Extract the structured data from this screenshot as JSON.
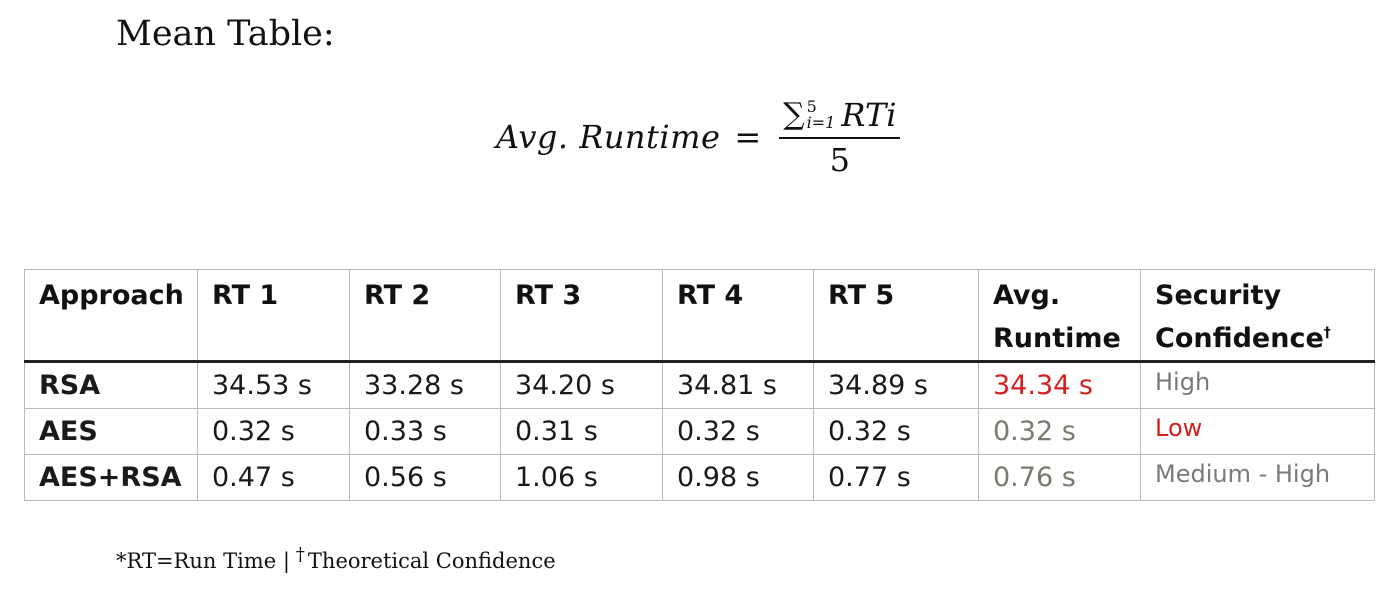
{
  "heading": "Mean Table:",
  "formula": {
    "lhs": "Avg. Runtime",
    "equals": "=",
    "sum_symbol": "∑",
    "upper_limit": "5",
    "lower_limit": "i=1",
    "term": "RTi",
    "denominator": "5"
  },
  "table": {
    "headers": [
      "Approach",
      "RT 1",
      "RT 2",
      "RT 3",
      "RT 4",
      "RT 5",
      "Avg.",
      "Runtime",
      "Security",
      "Confidence",
      "†"
    ],
    "rows": [
      {
        "approach": "RSA",
        "rt": [
          "34.53 s",
          "33.28 s",
          "34.20 s",
          "34.81 s",
          "34.89 s"
        ],
        "avg": "34.34 s",
        "confidence": "High"
      },
      {
        "approach": "AES",
        "rt": [
          "0.32 s",
          "0.33 s",
          "0.31 s",
          "0.32 s",
          "0.32 s"
        ],
        "avg": "0.32 s",
        "confidence": "Low"
      },
      {
        "approach": "AES+RSA",
        "rt": [
          "0.47 s",
          "0.56 s",
          "1.06 s",
          "0.98 s",
          "0.77 s"
        ],
        "avg": "0.76 s",
        "confidence": "Medium - High"
      }
    ]
  },
  "footnote": {
    "part1": "*RT=Run Time |",
    "dagger": "†",
    "part2": "Theoretical Confidence"
  },
  "colors": {
    "highlight_red": "#d42020",
    "muted_gray": "#7a7a6e",
    "border": "#b9b9b9"
  }
}
